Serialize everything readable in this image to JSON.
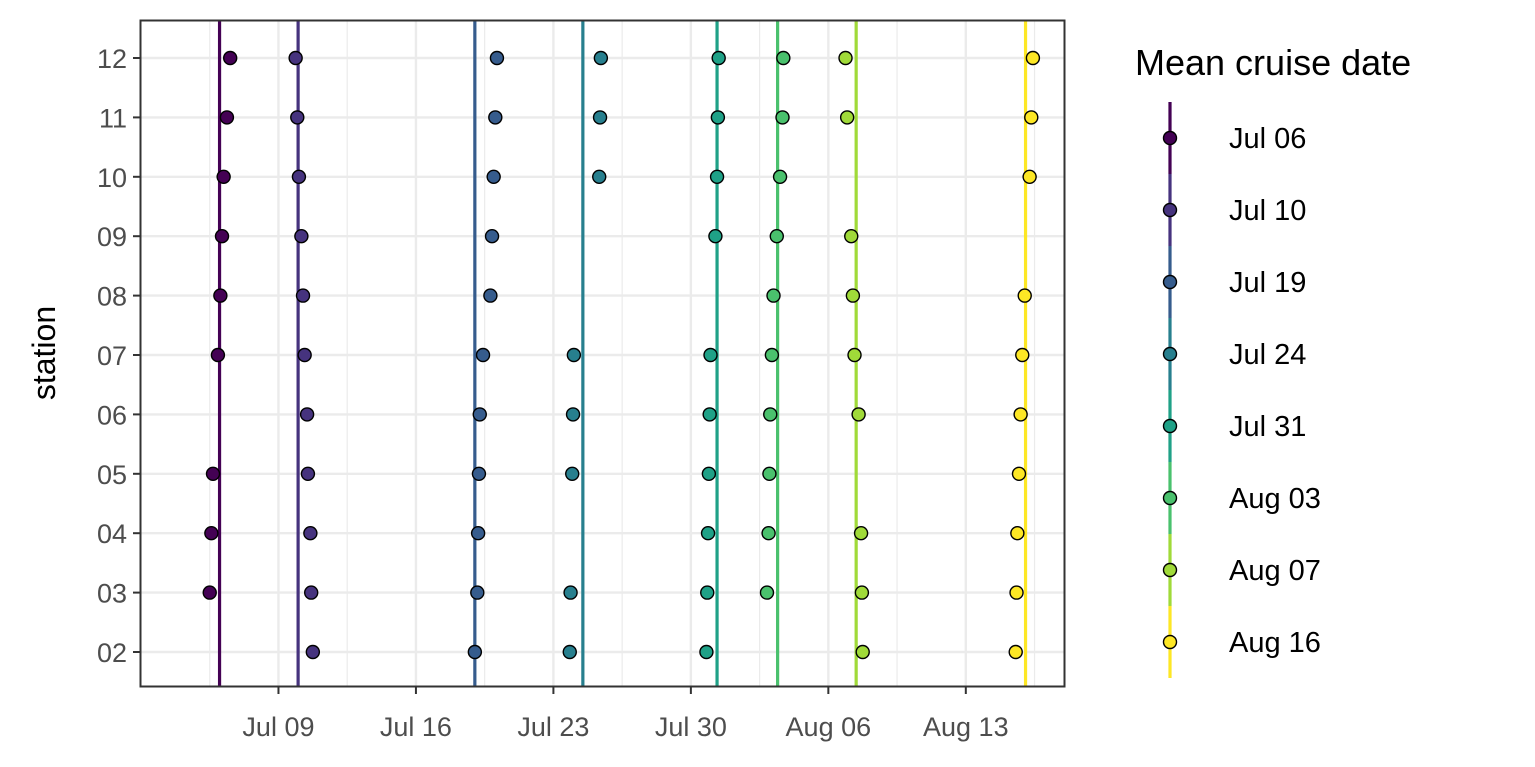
{
  "chart_data": {
    "type": "scatter",
    "title": "",
    "xlabel": "",
    "ylabel": "station",
    "x_axis_type": "date",
    "xlim": [
      "2023-07-02",
      "2023-08-18"
    ],
    "x_ticks": [
      {
        "date": "2023-07-09",
        "label": "Jul 09"
      },
      {
        "date": "2023-07-16",
        "label": "Jul 16"
      },
      {
        "date": "2023-07-23",
        "label": "Jul 23"
      },
      {
        "date": "2023-07-30",
        "label": "Jul 30"
      },
      {
        "date": "2023-08-06",
        "label": "Aug 06"
      },
      {
        "date": "2023-08-13",
        "label": "Aug 13"
      }
    ],
    "y_categories": [
      "02",
      "03",
      "04",
      "05",
      "06",
      "07",
      "08",
      "09",
      "10",
      "11",
      "12"
    ],
    "grid": true,
    "legend": {
      "title": "Mean cruise date",
      "position": "right"
    },
    "series": [
      {
        "name": "Jul 06",
        "mean_date": "2023-07-06",
        "color": "#440154",
        "points": [
          {
            "station": "03",
            "date": "2023-07-05 12:00"
          },
          {
            "station": "04",
            "date": "2023-07-05 14:00"
          },
          {
            "station": "05",
            "date": "2023-07-05 16:00"
          },
          {
            "station": "07",
            "date": "2023-07-05 22:00"
          },
          {
            "station": "08",
            "date": "2023-07-06 01:00"
          },
          {
            "station": "09",
            "date": "2023-07-06 03:00"
          },
          {
            "station": "10",
            "date": "2023-07-06 05:00"
          },
          {
            "station": "11",
            "date": "2023-07-06 09:00"
          },
          {
            "station": "12",
            "date": "2023-07-06 13:00"
          }
        ]
      },
      {
        "name": "Jul 10",
        "mean_date": "2023-07-10",
        "color": "#46337e",
        "points": [
          {
            "station": "02",
            "date": "2023-07-10 18:00"
          },
          {
            "station": "03",
            "date": "2023-07-10 16:00"
          },
          {
            "station": "04",
            "date": "2023-07-10 15:00"
          },
          {
            "station": "05",
            "date": "2023-07-10 12:00"
          },
          {
            "station": "06",
            "date": "2023-07-10 11:00"
          },
          {
            "station": "07",
            "date": "2023-07-10 08:00"
          },
          {
            "station": "08",
            "date": "2023-07-10 06:00"
          },
          {
            "station": "09",
            "date": "2023-07-10 04:00"
          },
          {
            "station": "10",
            "date": "2023-07-10 01:00"
          },
          {
            "station": "11",
            "date": "2023-07-09 23:00"
          },
          {
            "station": "12",
            "date": "2023-07-09 21:00"
          }
        ]
      },
      {
        "name": "Jul 19",
        "mean_date": "2023-07-19",
        "color": "#365c8d",
        "points": [
          {
            "station": "02",
            "date": "2023-07-19 00:00"
          },
          {
            "station": "03",
            "date": "2023-07-19 03:00"
          },
          {
            "station": "04",
            "date": "2023-07-19 04:00"
          },
          {
            "station": "05",
            "date": "2023-07-19 05:00"
          },
          {
            "station": "06",
            "date": "2023-07-19 06:00"
          },
          {
            "station": "07",
            "date": "2023-07-19 10:00"
          },
          {
            "station": "08",
            "date": "2023-07-19 19:00"
          },
          {
            "station": "09",
            "date": "2023-07-19 21:00"
          },
          {
            "station": "10",
            "date": "2023-07-19 23:00"
          },
          {
            "station": "11",
            "date": "2023-07-20 01:00"
          },
          {
            "station": "12",
            "date": "2023-07-20 03:00"
          }
        ]
      },
      {
        "name": "Jul 24",
        "mean_date": "2023-07-24 12:00",
        "color": "#277f8e",
        "points": [
          {
            "station": "02",
            "date": "2023-07-23 20:00"
          },
          {
            "station": "03",
            "date": "2023-07-23 21:00"
          },
          {
            "station": "05",
            "date": "2023-07-23 23:00"
          },
          {
            "station": "06",
            "date": "2023-07-24 00:00"
          },
          {
            "station": "07",
            "date": "2023-07-24 01:00"
          },
          {
            "station": "10",
            "date": "2023-07-25 08:00"
          },
          {
            "station": "11",
            "date": "2023-07-25 09:00"
          },
          {
            "station": "12",
            "date": "2023-07-25 10:00"
          }
        ]
      },
      {
        "name": "Jul 31",
        "mean_date": "2023-07-31 08:00",
        "color": "#1fa187",
        "points": [
          {
            "station": "02",
            "date": "2023-07-30 19:00"
          },
          {
            "station": "03",
            "date": "2023-07-30 20:00"
          },
          {
            "station": "04",
            "date": "2023-07-30 21:00"
          },
          {
            "station": "05",
            "date": "2023-07-30 22:00"
          },
          {
            "station": "06",
            "date": "2023-07-30 23:00"
          },
          {
            "station": "07",
            "date": "2023-07-31 00:00"
          },
          {
            "station": "09",
            "date": "2023-07-31 06:00"
          },
          {
            "station": "10",
            "date": "2023-07-31 08:00"
          },
          {
            "station": "11",
            "date": "2023-07-31 09:00"
          },
          {
            "station": "12",
            "date": "2023-07-31 10:00"
          }
        ]
      },
      {
        "name": "Aug 03",
        "mean_date": "2023-08-03 10:00",
        "color": "#4ac16d",
        "points": [
          {
            "station": "03",
            "date": "2023-08-02 21:00"
          },
          {
            "station": "04",
            "date": "2023-08-02 23:00"
          },
          {
            "station": "05",
            "date": "2023-08-03 00:00"
          },
          {
            "station": "06",
            "date": "2023-08-03 01:00"
          },
          {
            "station": "07",
            "date": "2023-08-03 03:00"
          },
          {
            "station": "08",
            "date": "2023-08-03 05:00"
          },
          {
            "station": "09",
            "date": "2023-08-03 09:00"
          },
          {
            "station": "10",
            "date": "2023-08-03 13:00"
          },
          {
            "station": "11",
            "date": "2023-08-03 16:00"
          },
          {
            "station": "12",
            "date": "2023-08-03 17:00"
          }
        ]
      },
      {
        "name": "Aug 07",
        "mean_date": "2023-08-07 10:00",
        "color": "#a0da39",
        "points": [
          {
            "station": "02",
            "date": "2023-08-07 18:00"
          },
          {
            "station": "03",
            "date": "2023-08-07 17:00"
          },
          {
            "station": "04",
            "date": "2023-08-07 16:00"
          },
          {
            "station": "06",
            "date": "2023-08-07 13:00"
          },
          {
            "station": "07",
            "date": "2023-08-07 08:00"
          },
          {
            "station": "08",
            "date": "2023-08-07 06:00"
          },
          {
            "station": "09",
            "date": "2023-08-07 04:00"
          },
          {
            "station": "11",
            "date": "2023-08-06 23:00"
          },
          {
            "station": "12",
            "date": "2023-08-06 21:00"
          }
        ]
      },
      {
        "name": "Aug 16",
        "mean_date": "2023-08-16 01:00",
        "color": "#fde725",
        "points": [
          {
            "station": "02",
            "date": "2023-08-15 13:00"
          },
          {
            "station": "03",
            "date": "2023-08-15 14:00"
          },
          {
            "station": "04",
            "date": "2023-08-15 15:00"
          },
          {
            "station": "05",
            "date": "2023-08-15 17:00"
          },
          {
            "station": "06",
            "date": "2023-08-15 19:00"
          },
          {
            "station": "07",
            "date": "2023-08-15 21:00"
          },
          {
            "station": "08",
            "date": "2023-08-16 00:00"
          },
          {
            "station": "10",
            "date": "2023-08-16 06:00"
          },
          {
            "station": "11",
            "date": "2023-08-16 08:00"
          },
          {
            "station": "12",
            "date": "2023-08-16 10:00"
          }
        ]
      }
    ]
  }
}
